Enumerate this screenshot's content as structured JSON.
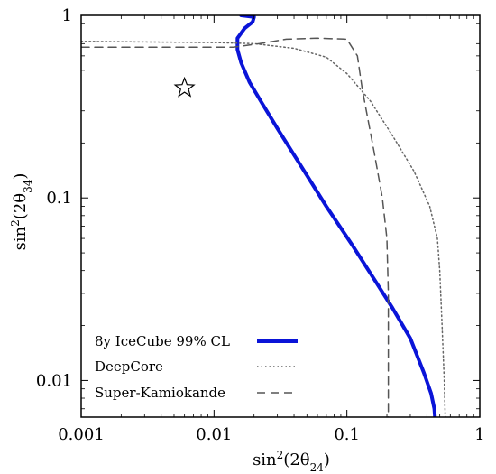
{
  "chart_data": {
    "type": "line",
    "xscale": "log",
    "yscale": "log",
    "xlim": [
      0.001,
      1
    ],
    "ylim": [
      0.0063,
      1
    ],
    "x_ticks": [
      "0.001",
      "0.01",
      "0.1",
      "1"
    ],
    "y_ticks": [
      "0.01",
      "0.1",
      "1"
    ],
    "xlabel": {
      "base": "sin",
      "sup": "2",
      "open": "(2θ",
      "sub": "24",
      "close": ")"
    },
    "ylabel": {
      "base": "sin",
      "sup": "2",
      "open": "(2θ",
      "sub": "34",
      "close": ")"
    },
    "grid": false,
    "legend_position": "bottom-left",
    "star_marker": {
      "x": 0.006,
      "y": 0.4
    },
    "series": [
      {
        "name": "8y IceCube 99% CL",
        "color": "#0a14d8",
        "style": "solid",
        "points": [
          [
            0.016,
            1.0
          ],
          [
            0.02,
            0.98
          ],
          [
            0.0195,
            0.92
          ],
          [
            0.017,
            0.85
          ],
          [
            0.015,
            0.75
          ],
          [
            0.015,
            0.65
          ],
          [
            0.016,
            0.55
          ],
          [
            0.0185,
            0.43
          ],
          [
            0.023,
            0.33
          ],
          [
            0.03,
            0.24
          ],
          [
            0.045,
            0.15
          ],
          [
            0.07,
            0.09
          ],
          [
            0.11,
            0.055
          ],
          [
            0.16,
            0.036
          ],
          [
            0.22,
            0.025
          ],
          [
            0.3,
            0.017
          ],
          [
            0.38,
            0.011
          ],
          [
            0.43,
            0.0085
          ],
          [
            0.455,
            0.007
          ],
          [
            0.46,
            0.0063
          ]
        ]
      },
      {
        "name": "DeepCore",
        "color": "#666666",
        "style": "dotted",
        "points": [
          [
            0.001,
            0.72
          ],
          [
            0.01,
            0.71
          ],
          [
            0.02,
            0.7
          ],
          [
            0.04,
            0.66
          ],
          [
            0.07,
            0.59
          ],
          [
            0.1,
            0.48
          ],
          [
            0.15,
            0.34
          ],
          [
            0.22,
            0.22
          ],
          [
            0.32,
            0.14
          ],
          [
            0.42,
            0.09
          ],
          [
            0.48,
            0.06
          ],
          [
            0.5,
            0.04
          ],
          [
            0.52,
            0.02
          ],
          [
            0.54,
            0.01
          ],
          [
            0.55,
            0.0063
          ]
        ]
      },
      {
        "name": "Super-Kamiokande",
        "color": "#555555",
        "style": "dashed",
        "points": [
          [
            0.001,
            0.67
          ],
          [
            0.014,
            0.67
          ],
          [
            0.022,
            0.7
          ],
          [
            0.035,
            0.74
          ],
          [
            0.06,
            0.75
          ],
          [
            0.1,
            0.74
          ],
          [
            0.12,
            0.6
          ],
          [
            0.13,
            0.4
          ],
          [
            0.14,
            0.3
          ],
          [
            0.16,
            0.18
          ],
          [
            0.185,
            0.1
          ],
          [
            0.2,
            0.06
          ],
          [
            0.205,
            0.03
          ],
          [
            0.205,
            0.01
          ],
          [
            0.205,
            0.0063
          ]
        ]
      }
    ]
  }
}
